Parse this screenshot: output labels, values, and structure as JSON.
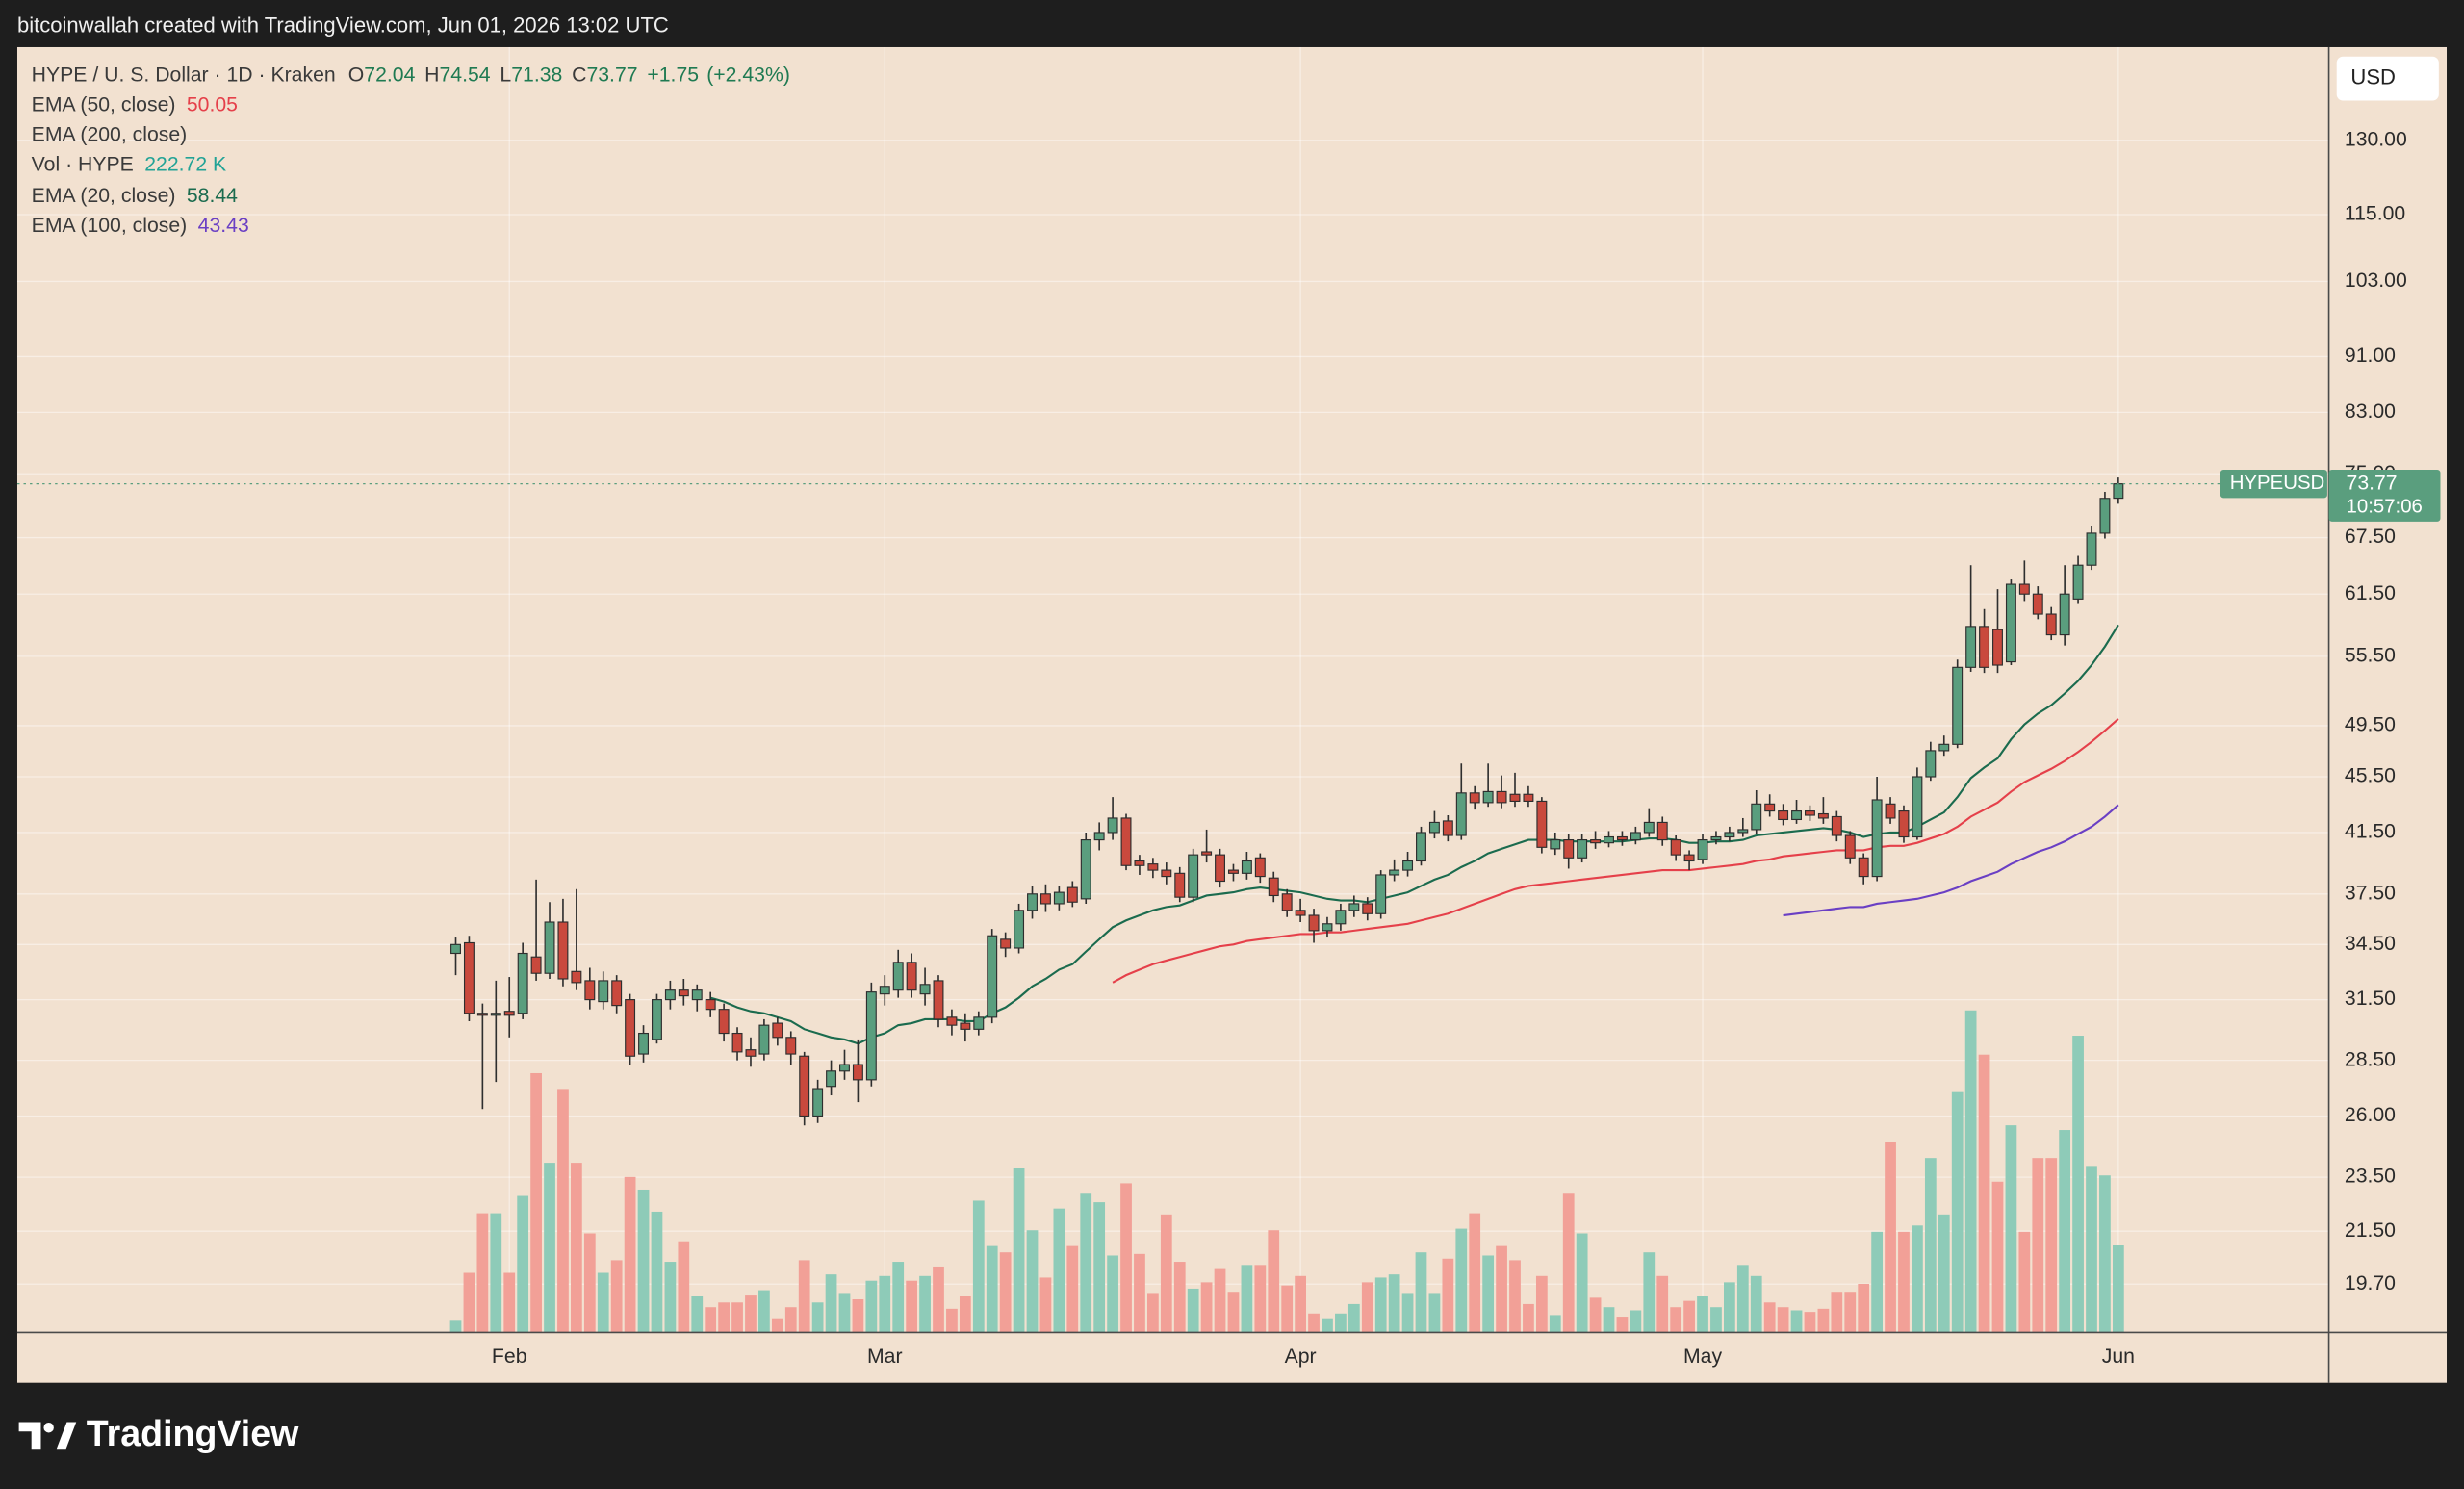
{
  "chart_data": {
    "type": "candlestick",
    "attribution": "bitcoinwallah created with TradingView.com, Jun 01, 2026 13:02 UTC",
    "title": "HYPE / U. S. Dollar · 1D · Kraken",
    "ohlc_fields": [
      "O",
      "H",
      "L",
      "C"
    ],
    "change": {
      "value": 1.75,
      "label": "+1.75"
    },
    "change_pct": {
      "value": 2.43,
      "label": "(+2.43%)"
    },
    "currency": "USD",
    "symbol_tag": "HYPEUSD",
    "countdown": "10:57:06",
    "brand": "TradingView",
    "up_color": "#5a9e7e",
    "down_color": "#c9493d",
    "wick_color": "#2e2e2e",
    "open": [
      34.0,
      34.6,
      30.8,
      30.7,
      30.9,
      30.8,
      33.8,
      32.9,
      35.8,
      33.0,
      32.5,
      31.4,
      32.5,
      31.5,
      28.8,
      29.5,
      31.5,
      32.0,
      31.5,
      31.5,
      31.0,
      29.8,
      29.0,
      28.8,
      30.3,
      29.6,
      28.7,
      26.0,
      27.3,
      28.0,
      28.3,
      27.6,
      31.8,
      32.0,
      33.5,
      31.8,
      32.5,
      30.6,
      30.3,
      30.0,
      30.6,
      34.8,
      34.3,
      36.5,
      37.5,
      36.9,
      37.9,
      37.2,
      41.0,
      41.5,
      42.5,
      39.6,
      39.4,
      39.0,
      38.8,
      37.3,
      40.2,
      40.0,
      39.0,
      38.8,
      39.8,
      38.5,
      37.5,
      36.5,
      36.2,
      35.3,
      35.7,
      36.5,
      36.9,
      36.3,
      38.7,
      39.0,
      39.6,
      41.5,
      42.3,
      41.3,
      44.3,
      43.6,
      44.4,
      44.2,
      44.2,
      43.7,
      40.4,
      41.0,
      39.8,
      41.0,
      40.8,
      41.2,
      41.0,
      41.5,
      42.2,
      41.0,
      40.0,
      39.7,
      41.0,
      41.2,
      41.5,
      41.7,
      43.5,
      43.0,
      42.4,
      43.0,
      42.8,
      42.6,
      41.3,
      39.8,
      38.6,
      43.5,
      43.0,
      41.2,
      45.5,
      47.5,
      48.0,
      54.5,
      58.3,
      58.0,
      55.0,
      62.5,
      61.5,
      59.5,
      57.5,
      61.0,
      64.5,
      68.0,
      72.04
    ],
    "high": [
      34.9,
      35.0,
      31.3,
      32.5,
      32.7,
      34.6,
      38.4,
      37.0,
      37.2,
      37.8,
      33.2,
      33.0,
      32.8,
      31.8,
      30.2,
      31.8,
      32.5,
      32.6,
      32.3,
      31.9,
      31.3,
      30.1,
      29.6,
      30.5,
      30.6,
      29.9,
      28.9,
      27.6,
      28.5,
      29.0,
      29.5,
      32.4,
      32.8,
      34.2,
      34.0,
      33.2,
      32.8,
      31.0,
      30.8,
      30.9,
      35.4,
      35.2,
      36.9,
      38.0,
      38.1,
      38.0,
      38.3,
      41.5,
      42.2,
      44.0,
      42.8,
      40.0,
      39.8,
      39.5,
      39.2,
      40.4,
      41.7,
      40.4,
      39.4,
      40.2,
      40.1,
      38.9,
      37.8,
      37.2,
      36.6,
      36.1,
      36.9,
      37.4,
      37.3,
      39.0,
      39.7,
      40.2,
      41.9,
      43.0,
      42.7,
      46.5,
      44.8,
      46.5,
      45.6,
      45.8,
      44.8,
      44.0,
      41.5,
      41.4,
      41.4,
      41.6,
      41.6,
      41.6,
      41.9,
      43.2,
      42.6,
      41.3,
      40.3,
      41.4,
      41.6,
      41.9,
      42.5,
      44.5,
      44.2,
      43.5,
      43.8,
      43.4,
      44.0,
      43.0,
      41.6,
      40.1,
      45.5,
      44.0,
      43.4,
      46.2,
      48.2,
      48.7,
      55.2,
      64.5,
      60.0,
      62.0,
      63.0,
      65.0,
      62.3,
      60.2,
      64.5,
      65.5,
      68.8,
      72.8,
      74.54
    ],
    "low": [
      32.8,
      30.4,
      26.3,
      27.5,
      29.6,
      30.5,
      32.5,
      32.6,
      32.2,
      32.0,
      31.0,
      31.0,
      30.8,
      28.3,
      28.4,
      29.3,
      31.0,
      31.2,
      30.9,
      30.6,
      29.4,
      28.5,
      28.2,
      28.5,
      29.2,
      28.3,
      25.6,
      25.7,
      26.9,
      27.6,
      26.6,
      27.3,
      31.2,
      31.6,
      31.6,
      31.2,
      30.1,
      29.7,
      29.4,
      29.7,
      30.3,
      33.8,
      34.0,
      36.0,
      36.4,
      36.5,
      36.7,
      36.9,
      40.3,
      41.0,
      39.0,
      38.7,
      38.5,
      38.1,
      37.0,
      37.0,
      39.5,
      37.9,
      38.3,
      38.4,
      38.2,
      37.0,
      36.1,
      35.8,
      34.6,
      34.9,
      35.3,
      36.1,
      35.9,
      36.0,
      38.3,
      38.6,
      39.3,
      41.1,
      40.9,
      41.0,
      43.1,
      43.3,
      43.2,
      43.3,
      43.3,
      40.1,
      40.0,
      39.1,
      39.5,
      40.4,
      40.5,
      40.6,
      40.7,
      41.2,
      40.6,
      39.6,
      39.0,
      39.4,
      40.7,
      40.9,
      41.2,
      41.4,
      42.6,
      42.0,
      42.1,
      42.3,
      42.1,
      40.9,
      39.4,
      38.1,
      38.3,
      42.1,
      40.8,
      41.0,
      45.2,
      47.1,
      47.7,
      54.1,
      54.0,
      54.0,
      54.7,
      60.8,
      59.0,
      57.0,
      56.5,
      60.5,
      64.0,
      67.4,
      71.38
    ],
    "close": [
      34.5,
      30.8,
      30.7,
      30.8,
      30.7,
      34.0,
      32.9,
      35.8,
      32.6,
      32.4,
      31.5,
      32.5,
      31.2,
      28.7,
      29.8,
      31.5,
      32.0,
      31.7,
      32.0,
      31.0,
      29.8,
      28.9,
      28.7,
      30.2,
      29.6,
      28.8,
      26.0,
      27.2,
      28.0,
      28.3,
      27.6,
      31.9,
      32.2,
      33.5,
      32.0,
      32.3,
      30.5,
      30.2,
      30.0,
      30.6,
      35.0,
      34.3,
      36.5,
      37.5,
      36.9,
      37.6,
      37.0,
      41.0,
      41.5,
      42.5,
      39.3,
      39.3,
      39.0,
      38.6,
      37.3,
      40.0,
      40.0,
      38.3,
      38.8,
      39.6,
      38.6,
      37.4,
      36.5,
      36.2,
      35.3,
      35.7,
      36.5,
      36.9,
      36.3,
      38.7,
      39.0,
      39.6,
      41.5,
      42.2,
      41.3,
      44.3,
      43.6,
      44.4,
      43.6,
      43.7,
      43.7,
      40.5,
      41.0,
      39.8,
      41.0,
      40.8,
      41.2,
      41.0,
      41.5,
      42.2,
      41.0,
      40.0,
      39.6,
      41.0,
      41.2,
      41.5,
      41.7,
      43.5,
      43.0,
      42.4,
      43.0,
      42.7,
      42.5,
      41.3,
      39.8,
      38.6,
      43.8,
      42.5,
      41.2,
      45.5,
      47.5,
      48.0,
      54.5,
      58.3,
      54.5,
      54.7,
      62.5,
      61.5,
      59.5,
      57.5,
      61.5,
      64.5,
      68.0,
      72.02,
      73.77
    ],
    "volume": {
      "name": "Vol · HYPE",
      "value_label": "222.72 K",
      "axis": "y2",
      "up_color": "#8ecbb8",
      "down_color": "#f2a097",
      "values": [
        32,
        151,
        302,
        302,
        151,
        346,
        657,
        430,
        617,
        430,
        251,
        151,
        183,
        394,
        362,
        306,
        179,
        231,
        92,
        64,
        76,
        76,
        96,
        107,
        36,
        64,
        183,
        76,
        147,
        100,
        84,
        131,
        143,
        179,
        131,
        143,
        167,
        60,
        92,
        334,
        219,
        203,
        418,
        259,
        139,
        314,
        219,
        354,
        330,
        195,
        378,
        199,
        100,
        299,
        179,
        111,
        127,
        163,
        103,
        171,
        171,
        259,
        119,
        143,
        48,
        36,
        48,
        72,
        127,
        139,
        147,
        100,
        203,
        100,
        187,
        263,
        302,
        195,
        219,
        183,
        72,
        143,
        44,
        354,
        251,
        88,
        64,
        40,
        56,
        203,
        143,
        64,
        80,
        92,
        64,
        127,
        171,
        143,
        76,
        64,
        56,
        52,
        60,
        103,
        103,
        123,
        255,
        482,
        255,
        271,
        442,
        299,
        609,
        816,
        704,
        382,
        525,
        255,
        442,
        442,
        513,
        752,
        422,
        398,
        222.72
      ]
    },
    "series": [
      {
        "name": "EMA (50, close)",
        "color": "#e5404a",
        "values": [
          null,
          null,
          null,
          null,
          null,
          null,
          null,
          null,
          null,
          null,
          null,
          null,
          null,
          null,
          null,
          null,
          null,
          null,
          null,
          null,
          null,
          null,
          null,
          null,
          null,
          null,
          null,
          null,
          null,
          null,
          null,
          null,
          null,
          null,
          null,
          null,
          null,
          null,
          null,
          null,
          null,
          null,
          null,
          null,
          null,
          null,
          null,
          null,
          null,
          32.4,
          32.8,
          33.1,
          33.4,
          33.6,
          33.8,
          34.0,
          34.2,
          34.4,
          34.5,
          34.7,
          34.8,
          34.9,
          35.0,
          35.1,
          35.1,
          35.2,
          35.2,
          35.3,
          35.4,
          35.5,
          35.6,
          35.7,
          35.9,
          36.1,
          36.3,
          36.6,
          36.9,
          37.2,
          37.5,
          37.8,
          38.0,
          38.1,
          38.2,
          38.3,
          38.4,
          38.5,
          38.6,
          38.7,
          38.8,
          38.9,
          39.0,
          39.0,
          39.0,
          39.1,
          39.2,
          39.3,
          39.4,
          39.6,
          39.7,
          39.9,
          40.0,
          40.1,
          40.2,
          40.3,
          40.3,
          40.3,
          40.5,
          40.6,
          40.6,
          40.8,
          41.1,
          41.4,
          41.9,
          42.6,
          43.1,
          43.6,
          44.4,
          45.1,
          45.6,
          46.1,
          46.7,
          47.4,
          48.2,
          49.1,
          50.05
        ]
      },
      {
        "name": "EMA (200, close)",
        "color": "#2962ff"
      },
      {
        "name": "EMA (20, close)",
        "color": "#1b6b4e",
        "values": [
          null,
          null,
          null,
          null,
          null,
          null,
          null,
          null,
          null,
          null,
          null,
          null,
          null,
          null,
          null,
          null,
          null,
          null,
          null,
          31.6,
          31.4,
          31.1,
          30.9,
          30.8,
          30.6,
          30.4,
          30.0,
          29.8,
          29.6,
          29.5,
          29.3,
          29.6,
          29.8,
          30.2,
          30.3,
          30.5,
          30.5,
          30.5,
          30.4,
          30.4,
          30.8,
          31.1,
          31.6,
          32.2,
          32.6,
          33.1,
          33.4,
          34.1,
          34.8,
          35.5,
          35.9,
          36.2,
          36.5,
          36.7,
          36.8,
          37.1,
          37.4,
          37.5,
          37.6,
          37.8,
          37.9,
          37.8,
          37.7,
          37.6,
          37.4,
          37.2,
          37.1,
          37.1,
          37.0,
          37.2,
          37.4,
          37.6,
          38.0,
          38.4,
          38.7,
          39.2,
          39.6,
          40.1,
          40.4,
          40.7,
          41.0,
          41.0,
          41.0,
          40.9,
          40.9,
          40.9,
          40.9,
          40.9,
          41.0,
          41.1,
          41.1,
          41.0,
          40.8,
          40.8,
          40.9,
          40.9,
          41.0,
          41.3,
          41.4,
          41.5,
          41.6,
          41.7,
          41.8,
          41.7,
          41.5,
          41.2,
          41.4,
          41.5,
          41.5,
          41.9,
          42.4,
          42.9,
          44.0,
          45.4,
          46.2,
          46.9,
          48.4,
          49.6,
          50.5,
          51.2,
          52.2,
          53.3,
          54.7,
          56.4,
          58.44
        ]
      },
      {
        "name": "EMA (100, close)",
        "color": "#6a3fc4",
        "values": [
          null,
          null,
          null,
          null,
          null,
          null,
          null,
          null,
          null,
          null,
          null,
          null,
          null,
          null,
          null,
          null,
          null,
          null,
          null,
          null,
          null,
          null,
          null,
          null,
          null,
          null,
          null,
          null,
          null,
          null,
          null,
          null,
          null,
          null,
          null,
          null,
          null,
          null,
          null,
          null,
          null,
          null,
          null,
          null,
          null,
          null,
          null,
          null,
          null,
          null,
          null,
          null,
          null,
          null,
          null,
          null,
          null,
          null,
          null,
          null,
          null,
          null,
          null,
          null,
          null,
          null,
          null,
          null,
          null,
          null,
          null,
          null,
          null,
          null,
          null,
          null,
          null,
          null,
          null,
          null,
          null,
          null,
          null,
          null,
          null,
          null,
          null,
          null,
          null,
          null,
          null,
          null,
          null,
          null,
          null,
          null,
          null,
          null,
          null,
          36.2,
          36.3,
          36.4,
          36.5,
          36.6,
          36.7,
          36.7,
          36.9,
          37.0,
          37.1,
          37.2,
          37.4,
          37.6,
          37.9,
          38.3,
          38.6,
          38.9,
          39.4,
          39.8,
          40.2,
          40.5,
          40.9,
          41.4,
          41.9,
          42.6,
          43.43
        ]
      }
    ],
    "xlim": [
      -32.7,
      139.7
    ],
    "xticks": [
      {
        "value": 4,
        "label": "Feb"
      },
      {
        "value": 32,
        "label": "Mar"
      },
      {
        "value": 63,
        "label": "Apr"
      },
      {
        "value": 93,
        "label": "May"
      },
      {
        "value": 124,
        "label": "Jun"
      }
    ],
    "ylim": [
      18.19,
      151.6
    ],
    "log_scale": true,
    "yticks": [
      {
        "value": 130,
        "label": "130.00"
      },
      {
        "value": 115,
        "label": "115.00"
      },
      {
        "value": 103,
        "label": "103.00"
      },
      {
        "value": 91,
        "label": "91.00"
      },
      {
        "value": 83,
        "label": "83.00"
      },
      {
        "value": 75,
        "label": "75.00"
      },
      {
        "value": 67.5,
        "label": "67.50"
      },
      {
        "value": 61.5,
        "label": "61.50"
      },
      {
        "value": 55.5,
        "label": "55.50"
      },
      {
        "value": 49.5,
        "label": "49.50"
      },
      {
        "value": 45.5,
        "label": "45.50"
      },
      {
        "value": 41.5,
        "label": "41.50"
      },
      {
        "value": 37.5,
        "label": "37.50"
      },
      {
        "value": 34.5,
        "label": "34.50"
      },
      {
        "value": 31.5,
        "label": "31.50"
      },
      {
        "value": 28.5,
        "label": "28.50"
      },
      {
        "value": 26,
        "label": "26.00"
      },
      {
        "value": 23.5,
        "label": "23.50"
      },
      {
        "value": 21.5,
        "label": "21.50"
      },
      {
        "value": 19.7,
        "label": "19.70"
      }
    ],
    "y2lim": [
      0,
      3256
    ],
    "grid": true
  }
}
